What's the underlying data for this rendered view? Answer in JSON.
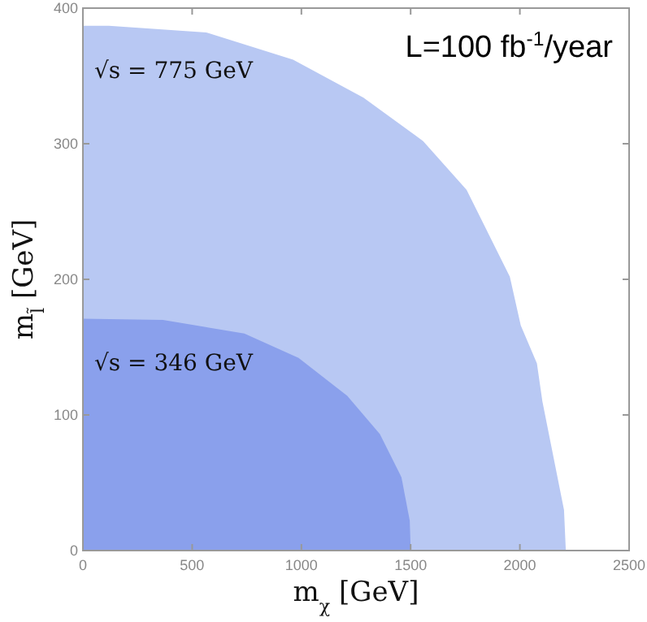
{
  "chart_data": {
    "type": "area",
    "title": "L=100 fb$^{-1}$/year",
    "xlabel": "m$_{χ}$ [GeV]",
    "ylabel": "m$_{l̃}$ [GeV]",
    "xlim": [
      0,
      2500
    ],
    "ylim": [
      0,
      400
    ],
    "xticks": [
      0,
      500,
      1000,
      1500,
      2000,
      2500
    ],
    "yticks": [
      0,
      100,
      200,
      300,
      400
    ],
    "grid": false,
    "series": [
      {
        "name": "√s = 775 GeV",
        "color": "#b8c8f3",
        "x": [
          0,
          119,
          565,
          962,
          1284,
          1557,
          1756,
          1954,
          2004,
          2078,
          2103,
          2202,
          2210,
          2210
        ],
        "values": [
          387,
          387,
          382,
          362,
          334,
          302,
          266,
          202,
          166,
          138,
          110,
          30,
          1,
          0
        ]
      },
      {
        "name": "√s = 346 GeV",
        "color": "#8aa0ec",
        "x": [
          0,
          367,
          739,
          987,
          1210,
          1359,
          1458,
          1496,
          1500,
          1500
        ],
        "values": [
          171,
          170,
          160,
          142,
          114,
          86,
          54,
          22,
          1,
          0
        ]
      }
    ]
  }
}
